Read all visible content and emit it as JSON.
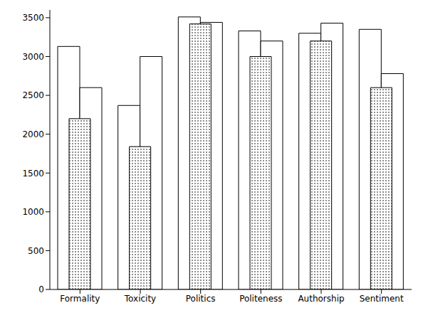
{
  "chart_data": {
    "type": "bar",
    "categories": [
      "Formality",
      "Toxicity",
      "Politics",
      "Politeness",
      "Authorship",
      "Sentiment"
    ],
    "series": [
      {
        "color": "#ffffff",
        "values": [
          3130,
          2370,
          3510,
          3330,
          3300,
          3350
        ]
      },
      {
        "color": "#ffffff",
        "values": [
          2600,
          3000,
          3440,
          3200,
          3430,
          2780
        ]
      },
      {
        "color": "#000000",
        "values": [
          2200,
          1840,
          3420,
          3000,
          3200,
          2600
        ]
      }
    ],
    "ylim": [
      0,
      3600
    ],
    "yticks": [
      0,
      500,
      1000,
      1500,
      2000,
      2500,
      3000,
      3500
    ],
    "grid": false
  }
}
